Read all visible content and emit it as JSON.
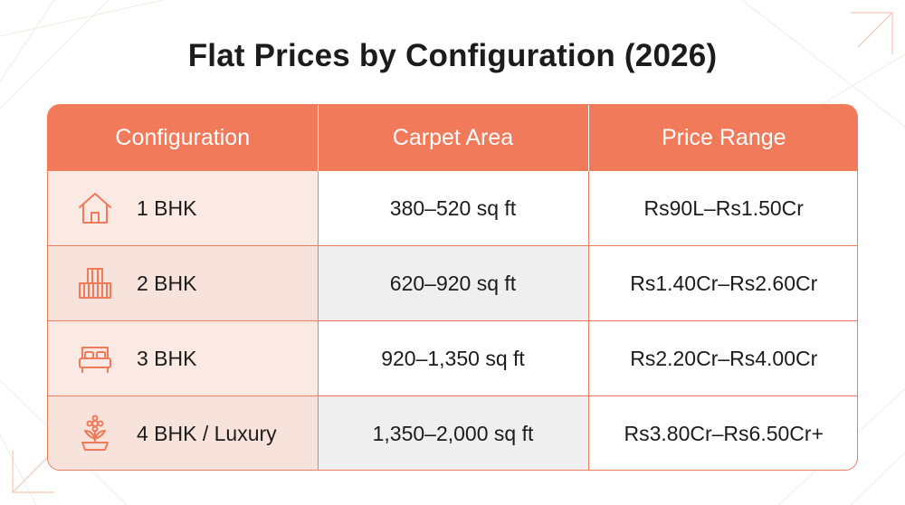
{
  "chart_data": {
    "type": "table",
    "title": "Flat Prices by Configuration (2026)",
    "columns": [
      "Configuration",
      "Carpet Area",
      "Price Range"
    ],
    "rows": [
      {
        "icon": "house-icon",
        "configuration": "1 BHK",
        "carpet_area": "380–520 sq ft",
        "price_range": "Rs90L–Rs1.50Cr"
      },
      {
        "icon": "building-icon",
        "configuration": "2 BHK",
        "carpet_area": "620–920 sq ft",
        "price_range": "Rs1.40Cr–Rs2.60Cr"
      },
      {
        "icon": "bed-icon",
        "configuration": "3 BHK",
        "carpet_area": "920–1,350 sq ft",
        "price_range": "Rs2.20Cr–Rs4.00Cr"
      },
      {
        "icon": "flower-pot-icon",
        "configuration": "4 BHK / Luxury",
        "carpet_area": "1,350–2,000 sq ft",
        "price_range": "Rs3.80Cr–Rs6.50Cr+"
      }
    ]
  },
  "colors": {
    "accent": "#f07a59",
    "config_cell_bg": "#fbe9e3",
    "alt_row_bg": "#efefef",
    "text": "#1c1c1c"
  }
}
